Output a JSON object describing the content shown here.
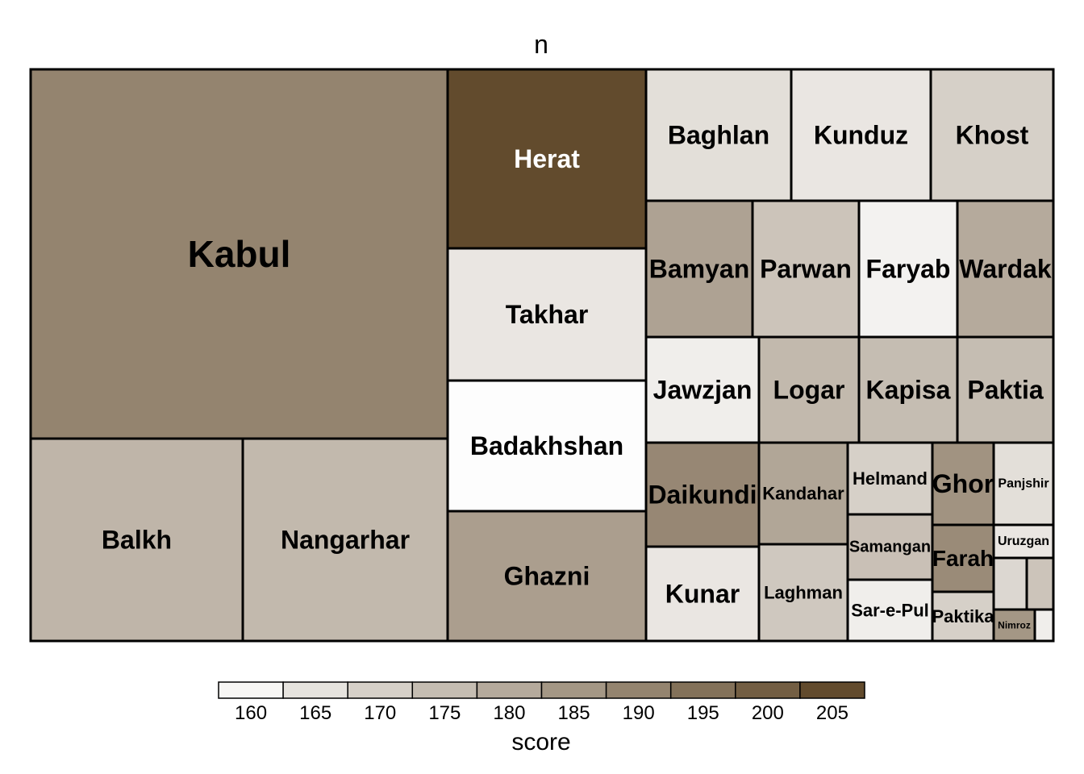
{
  "chart_data": {
    "type": "treemap",
    "title": "n",
    "legend": {
      "title": "score",
      "ticks": [
        160,
        165,
        170,
        175,
        180,
        185,
        190,
        195,
        200,
        205
      ],
      "range": [
        157.5,
        207.5
      ],
      "placement": "bottom"
    },
    "color_scale": [
      "#ffffff",
      "#5a4122"
    ],
    "items": [
      {
        "name": "Kabul",
        "score": 190
      },
      {
        "name": "Herat",
        "score": 205
      },
      {
        "name": "Takhar",
        "score": 164
      },
      {
        "name": "Badakhshan",
        "score": 158
      },
      {
        "name": "Ghazni",
        "score": 183
      },
      {
        "name": "Balkh",
        "score": 177
      },
      {
        "name": "Nangarhar",
        "score": 176
      },
      {
        "name": "Baghlan",
        "score": 166
      },
      {
        "name": "Kunduz",
        "score": 164
      },
      {
        "name": "Khost",
        "score": 170
      },
      {
        "name": "Bamyan",
        "score": 182
      },
      {
        "name": "Parwan",
        "score": 173
      },
      {
        "name": "Faryab",
        "score": 161
      },
      {
        "name": "Wardak",
        "score": 180
      },
      {
        "name": "Jawzjan",
        "score": 162
      },
      {
        "name": "Logar",
        "score": 176
      },
      {
        "name": "Kapisa",
        "score": 175
      },
      {
        "name": "Paktia",
        "score": 175
      },
      {
        "name": "Daikundi",
        "score": 189
      },
      {
        "name": "Kandahar",
        "score": 181
      },
      {
        "name": "Helmand",
        "score": 170
      },
      {
        "name": "Samangan",
        "score": 174
      },
      {
        "name": "Sar-e-Pul",
        "score": 162
      },
      {
        "name": "Ghor",
        "score": 186
      },
      {
        "name": "Farah",
        "score": 188
      },
      {
        "name": "Paktika",
        "score": 170
      },
      {
        "name": "Panjshir",
        "score": 166
      },
      {
        "name": "Uruzgan",
        "score": 164
      },
      {
        "name": "Nimroz",
        "score": 185
      },
      {
        "name": "",
        "score": 168
      },
      {
        "name": "",
        "score": 173
      },
      {
        "name": "",
        "score": 162
      },
      {
        "name": "Kunar",
        "score": 164
      },
      {
        "name": "Laghman",
        "score": 172
      }
    ]
  }
}
